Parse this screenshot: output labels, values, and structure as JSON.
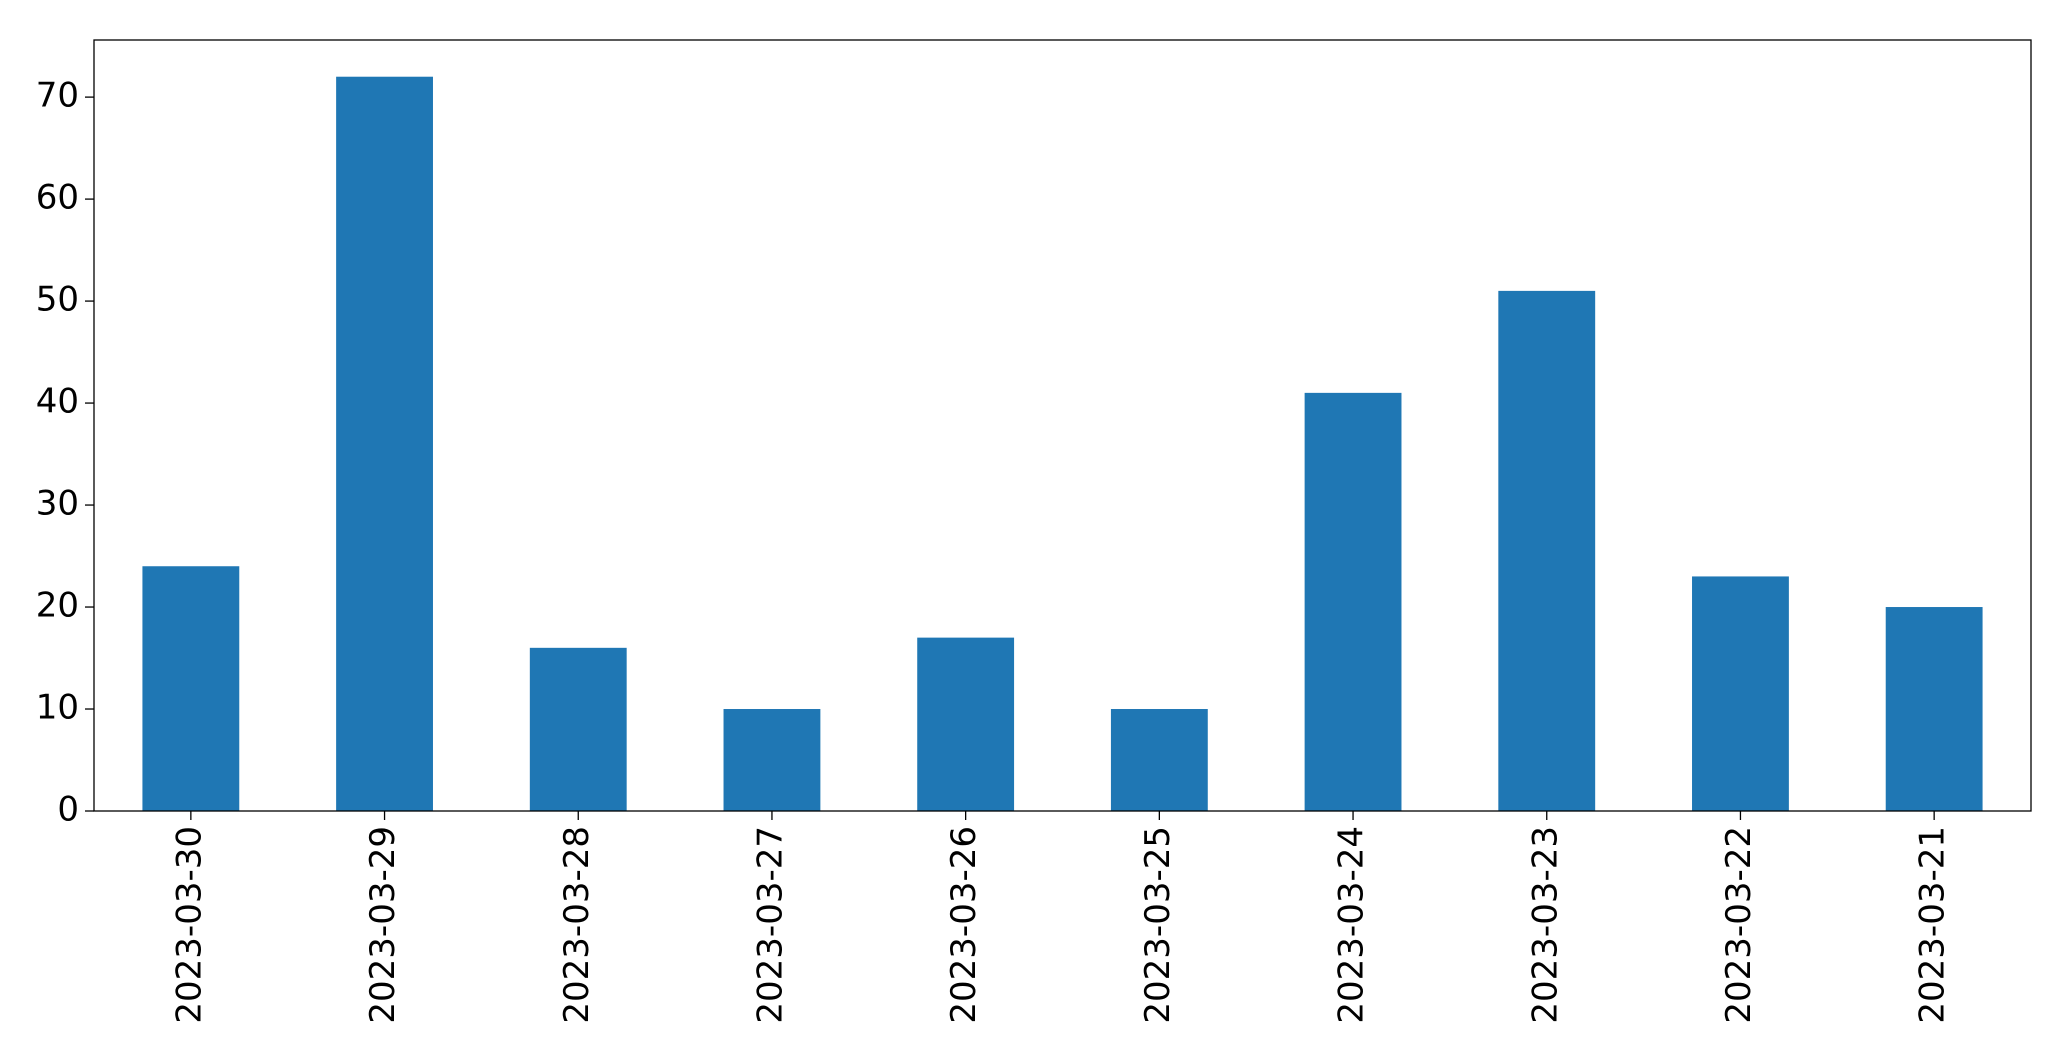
{
  "chart_data": {
    "type": "bar",
    "categories": [
      "2023-03-30",
      "2023-03-29",
      "2023-03-28",
      "2023-03-27",
      "2023-03-26",
      "2023-03-25",
      "2023-03-24",
      "2023-03-23",
      "2023-03-22",
      "2023-03-21"
    ],
    "values": [
      24,
      72,
      16,
      10,
      17,
      10,
      41,
      51,
      23,
      20
    ],
    "color": "#1f77b4",
    "ylim": [
      0,
      75.6
    ],
    "yticks": [
      0,
      10,
      20,
      30,
      40,
      50,
      60,
      70
    ],
    "grid": false
  }
}
